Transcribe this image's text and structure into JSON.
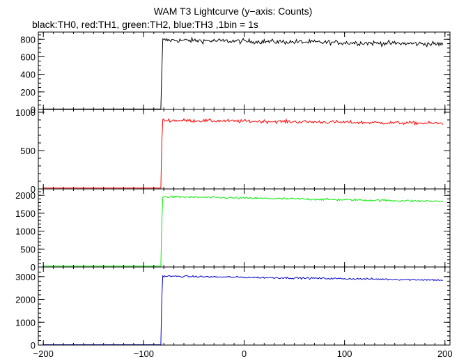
{
  "title": "WAM T3 Lightcurve (y−axis: Counts)",
  "subtitle": "black:TH0, red:TH1, green:TH2, blue:TH3 ,1bin = 1s",
  "chart_data": {
    "type": "line",
    "x_range": [
      -205,
      205
    ],
    "x_ticks": [
      -200,
      -100,
      0,
      100,
      200
    ],
    "x_minor_step": 10,
    "trigger_x": -82,
    "x_data_range": [
      -200,
      198
    ],
    "panels": [
      {
        "name": "TH0",
        "color": "#000000",
        "ylim": [
          0,
          850
        ],
        "y_ticks": [
          0,
          200,
          400,
          600,
          800
        ],
        "y_minor_step": 50,
        "pre_level": 5,
        "onset_level": 440,
        "post_start": 790,
        "post_end": 745,
        "noise": 28
      },
      {
        "name": "TH1",
        "color": "#ff0000",
        "ylim": [
          0,
          1000
        ],
        "y_ticks": [
          0,
          500,
          1000
        ],
        "y_minor_step": 100,
        "pre_level": 12,
        "onset_level": 610,
        "post_start": 895,
        "post_end": 855,
        "noise": 22
      },
      {
        "name": "TH2",
        "color": "#00ee00",
        "ylim": [
          0,
          2100
        ],
        "y_ticks": [
          0,
          500,
          1000,
          1500,
          2000
        ],
        "y_minor_step": 100,
        "pre_level": 25,
        "onset_level": 1280,
        "post_start": 1960,
        "post_end": 1830,
        "noise": 30
      },
      {
        "name": "TH3",
        "color": "#0000cc",
        "ylim": [
          0,
          3300
        ],
        "y_ticks": [
          0,
          1000,
          2000,
          3000
        ],
        "y_minor_step": 200,
        "pre_level": 15,
        "onset_level": 2050,
        "post_start": 3020,
        "post_end": 2850,
        "noise": 40
      }
    ]
  }
}
